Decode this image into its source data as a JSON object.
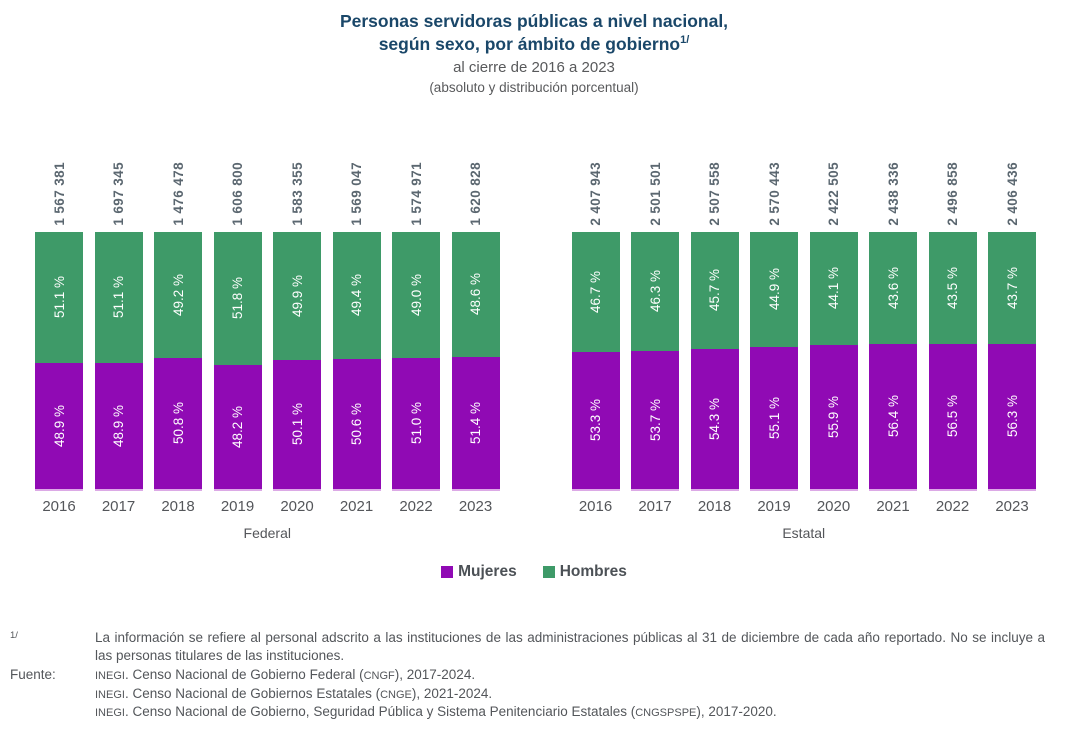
{
  "title": {
    "line1": "Personas servidoras públicas a nivel nacional,",
    "line2": "según sexo, por ámbito de gobierno",
    "superscript": "1/",
    "subtitle1": "al cierre de 2016 a 2023",
    "subtitle2": "(absoluto y distribución porcentual)"
  },
  "legend": [
    {
      "label": "Mujeres",
      "color": "#900AB4"
    },
    {
      "label": "Hombres",
      "color": "#3E9A68"
    }
  ],
  "chart_data": {
    "type": "bar",
    "stacked": true,
    "percent_stacked": true,
    "title": "Personas servidoras públicas a nivel nacional, según sexo, por ámbito de gobierno, al cierre de 2016 a 2023 (absoluto y distribución porcentual)",
    "legend_position": "bottom",
    "colors": {
      "mujeres": "#900AB4",
      "hombres": "#3E9A68",
      "baseline": "#DCA9E6"
    },
    "categories": [
      "2016",
      "2017",
      "2018",
      "2019",
      "2020",
      "2021",
      "2022",
      "2023"
    ],
    "groups": [
      {
        "label": "Federal",
        "totals": [
          "1 567 381",
          "1 697 345",
          "1 476 478",
          "1 606 800",
          "1 583 355",
          "1 569 047",
          "1 574 971",
          "1 620 828"
        ],
        "series": [
          {
            "name": "Mujeres",
            "values": [
              48.9,
              48.9,
              50.8,
              48.2,
              50.1,
              50.6,
              51.0,
              51.4
            ]
          },
          {
            "name": "Hombres",
            "values": [
              51.1,
              51.1,
              49.2,
              51.8,
              49.9,
              49.4,
              49.0,
              48.6
            ]
          }
        ]
      },
      {
        "label": "Estatal",
        "totals": [
          "2 407 943",
          "2 501 501",
          "2 507 558",
          "2 570 443",
          "2 422 505",
          "2 438 336",
          "2 496 858",
          "2 406 436"
        ],
        "series": [
          {
            "name": "Mujeres",
            "values": [
              53.3,
              53.7,
              54.3,
              55.1,
              55.9,
              56.4,
              56.5,
              56.3
            ]
          },
          {
            "name": "Hombres",
            "values": [
              46.7,
              46.3,
              45.7,
              44.9,
              44.1,
              43.6,
              43.5,
              43.7
            ]
          }
        ]
      }
    ]
  },
  "footnotes": {
    "note_marker": "1/",
    "note_text": "La información se refiere al personal adscrito a las instituciones de las administraciones públicas al 31 de diciembre de cada año reportado. No se incluye a las personas titulares de las instituciones.",
    "source_label": "Fuente:",
    "sources": [
      "INEGI. Censo Nacional de Gobierno Federal (CNGF), 2017-2024.",
      "INEGI. Censo Nacional de Gobiernos Estatales (CNGE), 2021-2024.",
      "INEGI. Censo Nacional de Gobierno, Seguridad Pública y Sistema Penitenciario Estatales (CNGSPSPE), 2017-2020."
    ],
    "acronyms": [
      "INEGI",
      "CNGSPSPE",
      "CNGF",
      "CNGE"
    ]
  }
}
